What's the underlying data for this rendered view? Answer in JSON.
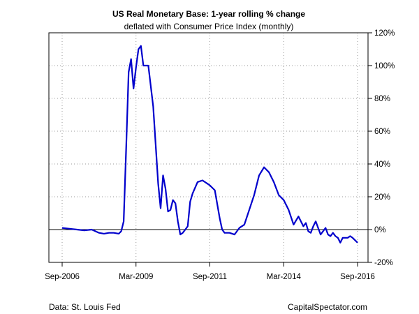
{
  "chart_data": {
    "type": "line",
    "title": "US Real Monetary Base: 1-year rolling % change",
    "subtitle": "deflated with Consumer Price Index (monthly)",
    "xlabel": "",
    "ylabel": "",
    "x_range": [
      "2006-09",
      "2016-09"
    ],
    "ylim": [
      -20,
      120
    ],
    "x_tick_labels": [
      "Sep-2006",
      "Mar-2009",
      "Sep-2011",
      "Mar-2014",
      "Sep-2016"
    ],
    "x_ticks": [
      "2006-09",
      "2009-03",
      "2011-09",
      "2014-03",
      "2016-09"
    ],
    "y_ticks": [
      -20,
      0,
      20,
      40,
      60,
      80,
      100,
      120
    ],
    "y_tick_labels": [
      "-20%",
      "0%",
      "20%",
      "40%",
      "60%",
      "80%",
      "100%",
      "120%"
    ],
    "y_axis_side": "right",
    "grid": "dotted",
    "reference_line": 0,
    "line_color": "#0000CC",
    "series": [
      {
        "x": [
          "2006-09",
          "2006-12",
          "2007-03",
          "2007-06",
          "2007-09",
          "2007-12",
          "2008-02",
          "2008-04",
          "2008-06",
          "2008-08",
          "2008-09",
          "2008-10",
          "2008-11",
          "2008-12",
          "2009-01",
          "2009-02",
          "2009-03",
          "2009-04",
          "2009-05",
          "2009-06",
          "2009-08",
          "2009-10",
          "2009-12",
          "2010-01",
          "2010-02",
          "2010-03",
          "2010-04",
          "2010-05",
          "2010-06",
          "2010-07",
          "2010-08",
          "2010-09",
          "2010-10",
          "2010-11",
          "2010-12",
          "2011-01",
          "2011-02",
          "2011-04",
          "2011-06",
          "2011-08",
          "2011-09",
          "2011-11",
          "2012-01",
          "2012-02",
          "2012-03",
          "2012-05",
          "2012-07",
          "2012-09",
          "2012-11",
          "2013-01",
          "2013-03",
          "2013-05",
          "2013-07",
          "2013-09",
          "2013-11",
          "2014-01",
          "2014-03",
          "2014-05",
          "2014-07",
          "2014-09",
          "2014-11",
          "2014-12",
          "2015-01",
          "2015-02",
          "2015-03",
          "2015-04",
          "2015-06",
          "2015-08",
          "2015-09",
          "2015-10",
          "2015-11",
          "2015-12",
          "2016-01",
          "2016-02",
          "2016-03",
          "2016-04",
          "2016-05",
          "2016-06",
          "2016-07",
          "2016-09"
        ],
        "values": [
          1,
          0.5,
          0,
          -0.5,
          0,
          -2,
          -2.5,
          -2,
          -2,
          -2.5,
          -1,
          5,
          50,
          96,
          104,
          86,
          99,
          110,
          112,
          100,
          100,
          75,
          28,
          13,
          33,
          25,
          11,
          12,
          18,
          16,
          5,
          -3,
          -2,
          0,
          2,
          17,
          22,
          29,
          30,
          28,
          27,
          24,
          7,
          0,
          -2,
          -2,
          -3,
          1,
          3,
          12,
          21,
          33,
          38,
          35,
          29,
          21,
          18,
          12,
          3,
          8,
          2,
          4,
          -1,
          -2,
          2,
          5,
          -3,
          1,
          -3,
          -4,
          -2,
          -4,
          -5,
          -8,
          -5,
          -5,
          -5,
          -4,
          -5,
          -8
        ]
      }
    ]
  },
  "footer": {
    "source": "Data: St. Louis Fed",
    "brand": "CapitalSpectator.com"
  }
}
